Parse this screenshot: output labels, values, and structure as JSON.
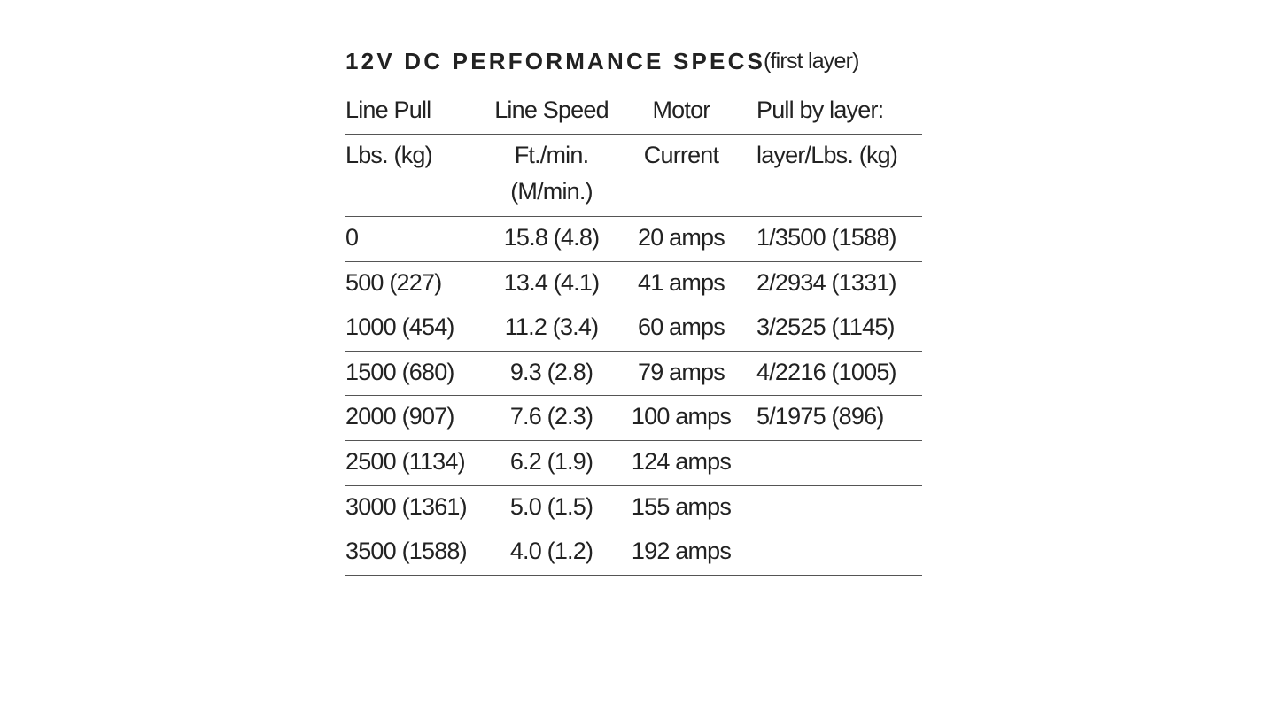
{
  "title": "12V DC PERFORMANCE SPECS",
  "subtitle": "(first layer)",
  "table": {
    "header": [
      [
        "Line Pull",
        "Line Speed",
        "Motor",
        "Pull by layer:"
      ],
      [
        "Lbs. (kg)",
        "Ft./min.\n(M/min.)",
        "Current",
        "layer/Lbs. (kg)"
      ]
    ],
    "rows": [
      [
        "0",
        "15.8 (4.8)",
        "20 amps",
        "1/3500 (1588)"
      ],
      [
        "500 (227)",
        "13.4 (4.1)",
        "41 amps",
        "2/2934 (1331)"
      ],
      [
        "1000 (454)",
        "11.2 (3.4)",
        "60 amps",
        "3/2525 (1145)"
      ],
      [
        "1500 (680)",
        "9.3 (2.8)",
        "79 amps",
        "4/2216 (1005)"
      ],
      [
        "2000 (907)",
        "7.6 (2.3)",
        "100 amps",
        "5/1975 (896)"
      ],
      [
        "2500 (1134)",
        "6.2 (1.9)",
        "124 amps"
      ],
      [
        "3000 (1361)",
        "5.0 (1.5)",
        "155 amps"
      ],
      [
        "3500 (1588)",
        "4.0 (1.2)",
        "192 amps"
      ]
    ]
  }
}
